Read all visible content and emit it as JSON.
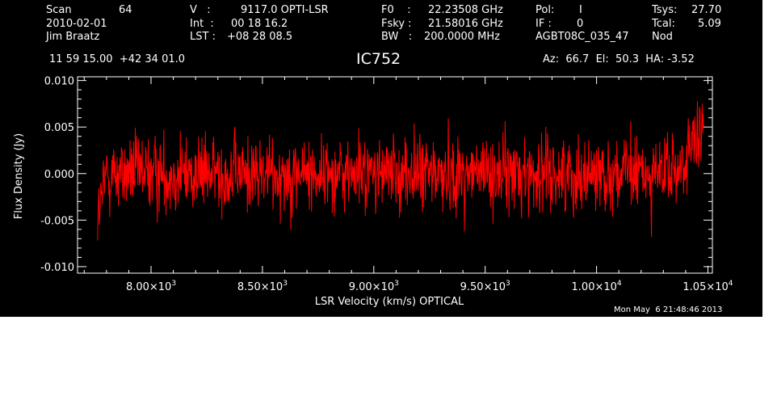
{
  "header": {
    "scan_label": "Scan",
    "scan_value": "64",
    "date": "2010-02-01",
    "observer": "Jim Braatz",
    "v_label": "V   :",
    "v_value": "9117.0 OPTI-LSR",
    "int_label": "Int  :",
    "int_value": "00 18 16.2",
    "lst_label": "LST :",
    "lst_value": "+08 28 08.5",
    "f0_label": "F0    :",
    "f0_value": "22.23508 GHz",
    "fsky_label": "Fsky :",
    "fsky_value": "21.58016 GHz",
    "bw_label": "BW   :",
    "bw_value": "200.0000 MHz",
    "pol_label": "Pol:",
    "pol_value": "I",
    "if_label": "IF :",
    "if_value": "0",
    "project": "AGBT08C_035_47",
    "tsys_label": "Tsys:",
    "tsys_value": "27.70",
    "tcal_label": "Tcal:",
    "tcal_value": "5.09",
    "mode": "Nod",
    "coords": "11 59 15.00  +42 34 01.0",
    "az_el_ha": "Az:  66.7  El:  50.3  HA: -3.52"
  },
  "timestamp": "Mon May  6 21:48:46 2013",
  "chart_data": {
    "type": "line",
    "title": "IC752",
    "xlabel": "LSR Velocity (km/s) OPTICAL",
    "ylabel": "Flux Density (Jy)",
    "xlim": [
      7670,
      10520
    ],
    "ylim": [
      -0.0107,
      0.0104
    ],
    "x_ticks": [
      8000,
      8500,
      9000,
      9500,
      10000,
      10500
    ],
    "x_tick_mantissa": [
      "8.00×10",
      "8.50×10",
      "9.00×10",
      "9.50×10",
      "1.00×10",
      "1.05×10"
    ],
    "x_tick_exponent": [
      "3",
      "3",
      "3",
      "3",
      "4",
      "4"
    ],
    "y_ticks": [
      -0.01,
      -0.005,
      0.0,
      0.005,
      0.01
    ],
    "y_tick_labels": [
      "-0.010",
      "-0.005",
      "0.000",
      "0.005",
      "0.010"
    ],
    "series": [
      {
        "color": "#ff0000",
        "x_range": [
          7760,
          10480
        ],
        "n_points": 1400,
        "rms": 0.0027,
        "edge_rise_start": 10350,
        "edge_rise_amplitude": 0.004,
        "edge_dip_end": 7800,
        "edge_dip_amplitude": -0.005
      }
    ]
  }
}
